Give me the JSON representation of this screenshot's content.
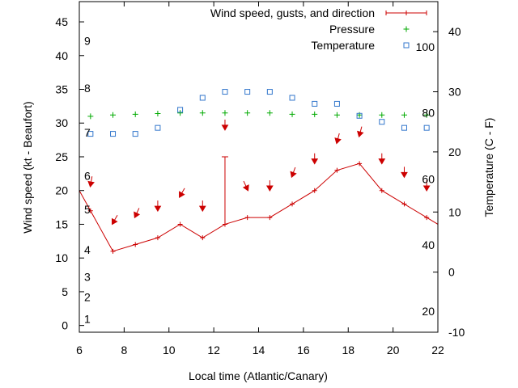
{
  "chart_data": {
    "type": "line",
    "xlabel": "Local time (Atlantic/Canary)",
    "ylabel": "Wind speed (kt - Beaufort)",
    "y2label": "Temperature (C - F)",
    "xlim": [
      6,
      22
    ],
    "ylim": [
      -1,
      48
    ],
    "y2lim": [
      -10,
      45
    ],
    "x_ticks": [
      6,
      8,
      10,
      12,
      14,
      16,
      18,
      20,
      22
    ],
    "y_ticks": [
      0,
      5,
      10,
      15,
      20,
      25,
      30,
      35,
      40,
      45
    ],
    "y2_ticks": [
      -10,
      0,
      10,
      20,
      30,
      40
    ],
    "beaufort_labels": [
      {
        "label": "1",
        "y": 1
      },
      {
        "label": "2",
        "y": 4.2
      },
      {
        "label": "3",
        "y": 7.2
      },
      {
        "label": "4",
        "y": 11.2
      },
      {
        "label": "5",
        "y": 17.2
      },
      {
        "label": "6",
        "y": 22.2
      },
      {
        "label": "7",
        "y": 28.6
      },
      {
        "label": "8",
        "y": 35.2
      },
      {
        "label": "9",
        "y": 42.2
      }
    ],
    "fahrenheit_labels": [
      {
        "label": "20",
        "y2": -6.5
      },
      {
        "label": "40",
        "y2": 4.5
      },
      {
        "label": "60",
        "y2": 15.5
      },
      {
        "label": "80",
        "y2": 26.5
      },
      {
        "label": "100",
        "y2": 37.5
      }
    ],
    "series": [
      {
        "name": "Wind speed, gusts, and direction",
        "color": "#cc0000",
        "x": [
          6.5,
          7.5,
          8.5,
          9.5,
          10.5,
          11.5,
          12.5,
          13.5,
          14.5,
          15.5,
          16.5,
          17.5,
          18.5,
          19.5,
          20.5,
          21.5
        ],
        "values": [
          17,
          11,
          12,
          13,
          15,
          13,
          15,
          16,
          16,
          18,
          20,
          23,
          24,
          20,
          18,
          16
        ],
        "gusts": [
          {
            "x": 12.5,
            "value": 25
          }
        ],
        "direction_arrows": [
          {
            "x": 6.5,
            "y": 20.8,
            "angle": 10
          },
          {
            "x": 7.5,
            "y": 15.2,
            "angle": 30
          },
          {
            "x": 8.5,
            "y": 16.2,
            "angle": 25
          },
          {
            "x": 9.5,
            "y": 17.2,
            "angle": 0
          },
          {
            "x": 10.5,
            "y": 19.2,
            "angle": 30
          },
          {
            "x": 11.5,
            "y": 17.2,
            "angle": 0
          },
          {
            "x": 12.5,
            "y": 29.2,
            "angle": 0
          },
          {
            "x": 13.5,
            "y": 20.2,
            "angle": -25
          },
          {
            "x": 14.5,
            "y": 20.2,
            "angle": 0
          },
          {
            "x": 15.5,
            "y": 22.2,
            "angle": 20
          },
          {
            "x": 16.5,
            "y": 24.2,
            "angle": 0
          },
          {
            "x": 17.5,
            "y": 27.2,
            "angle": 15
          },
          {
            "x": 18.5,
            "y": 28.2,
            "angle": 15
          },
          {
            "x": 19.5,
            "y": 24.2,
            "angle": 0
          },
          {
            "x": 20.5,
            "y": 22.2,
            "angle": 0
          },
          {
            "x": 21.5,
            "y": 20.2,
            "angle": 0
          }
        ]
      },
      {
        "name": "Pressure",
        "color": "#00aa00",
        "marker": "+",
        "x": [
          6.5,
          7.5,
          8.5,
          9.5,
          10.5,
          11.5,
          12.5,
          13.5,
          14.5,
          15.5,
          16.5,
          17.5,
          18.5,
          19.5,
          20.5,
          21.5
        ],
        "values": [
          31,
          31.2,
          31.3,
          31.4,
          31.5,
          31.5,
          31.5,
          31.5,
          31.5,
          31.3,
          31.3,
          31.2,
          31.2,
          31.2,
          31.2,
          31.2
        ]
      },
      {
        "name": "Temperature",
        "color": "#3377cc",
        "marker": "square",
        "x": [
          6.5,
          7.5,
          8.5,
          9.5,
          10.5,
          11.5,
          12.5,
          13.5,
          14.5,
          15.5,
          16.5,
          17.5,
          18.5,
          19.5,
          20.5,
          21.5
        ],
        "values": [
          23,
          23,
          23,
          24,
          27,
          29,
          30,
          30,
          30,
          29,
          28,
          28,
          26,
          25,
          24,
          24
        ]
      }
    ],
    "legend_position": "top-right"
  }
}
